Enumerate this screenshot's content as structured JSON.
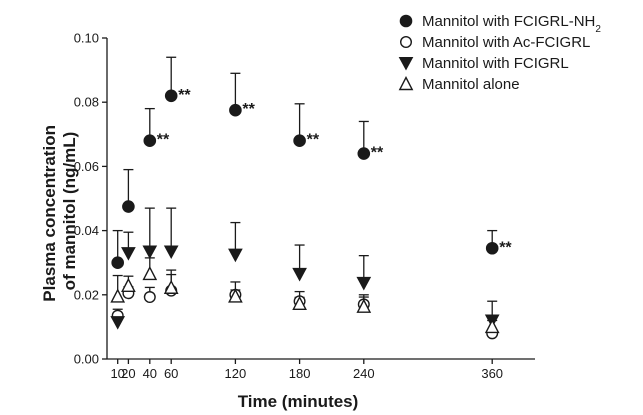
{
  "chart_data": {
    "type": "scatter",
    "xlabel": "Time (minutes)",
    "ylabel": [
      "Plasma concentration",
      "of mannitol (ng/mL)"
    ],
    "x_ticks": [
      10,
      20,
      40,
      60,
      120,
      180,
      240,
      360
    ],
    "y_ticks": [
      "0.00",
      "0.02",
      "0.04",
      "0.06",
      "0.08",
      "0.10"
    ],
    "xlim": [
      0,
      400
    ],
    "ylim": [
      0,
      0.1
    ],
    "grid": false,
    "legend_position": "top-right",
    "significance_label": "**",
    "series": [
      {
        "name": "Mannitol with FCIGRL-NH",
        "name_sub": "2",
        "marker": "filled-circle",
        "x": [
          10,
          20,
          40,
          60,
          120,
          180,
          240,
          360
        ],
        "y": [
          0.03,
          0.0475,
          0.068,
          0.082,
          0.0775,
          0.068,
          0.064,
          0.0345
        ],
        "err_up": [
          0.01,
          0.0115,
          0.01,
          0.012,
          0.0115,
          0.0115,
          0.01,
          0.0055
        ],
        "significant": [
          false,
          false,
          true,
          true,
          true,
          true,
          true,
          true
        ]
      },
      {
        "name": "Mannitol with Ac-FCIGRL",
        "marker": "open-circle",
        "x": [
          10,
          20,
          40,
          60,
          120,
          180,
          240,
          360
        ],
        "y": [
          0.0135,
          0.0205,
          0.0193,
          0.0213,
          0.02,
          0.018,
          0.017,
          0.008
        ],
        "err_up": [
          0.002,
          0.002,
          0.003,
          0.005,
          0.004,
          0.003,
          0.003,
          0.001
        ],
        "significant": [
          false,
          false,
          false,
          false,
          false,
          false,
          false,
          false
        ]
      },
      {
        "name": "Mannitol with FCIGRL",
        "marker": "filled-triangle-down",
        "x": [
          10,
          20,
          40,
          60,
          120,
          180,
          240,
          360
        ],
        "y": [
          0.0115,
          0.033,
          0.0335,
          0.0335,
          0.0325,
          0.0265,
          0.0237,
          0.012
        ],
        "err_up": [
          0.0015,
          0.0065,
          0.0135,
          0.0135,
          0.01,
          0.009,
          0.0085,
          0.006
        ],
        "significant": [
          false,
          false,
          false,
          false,
          false,
          false,
          false,
          false
        ]
      },
      {
        "name": "Mannitol alone",
        "marker": "open-triangle-up",
        "x": [
          10,
          20,
          40,
          60,
          120,
          180,
          240,
          360
        ],
        "y": [
          0.0195,
          0.0228,
          0.0265,
          0.0222,
          0.0195,
          0.0172,
          0.0163,
          0.01
        ],
        "err_up": [
          0.0065,
          0.003,
          0.005,
          0.0055,
          0.002,
          0.002,
          0.003,
          0.002
        ],
        "significant": [
          false,
          false,
          false,
          false,
          false,
          false,
          false,
          false
        ]
      }
    ]
  }
}
